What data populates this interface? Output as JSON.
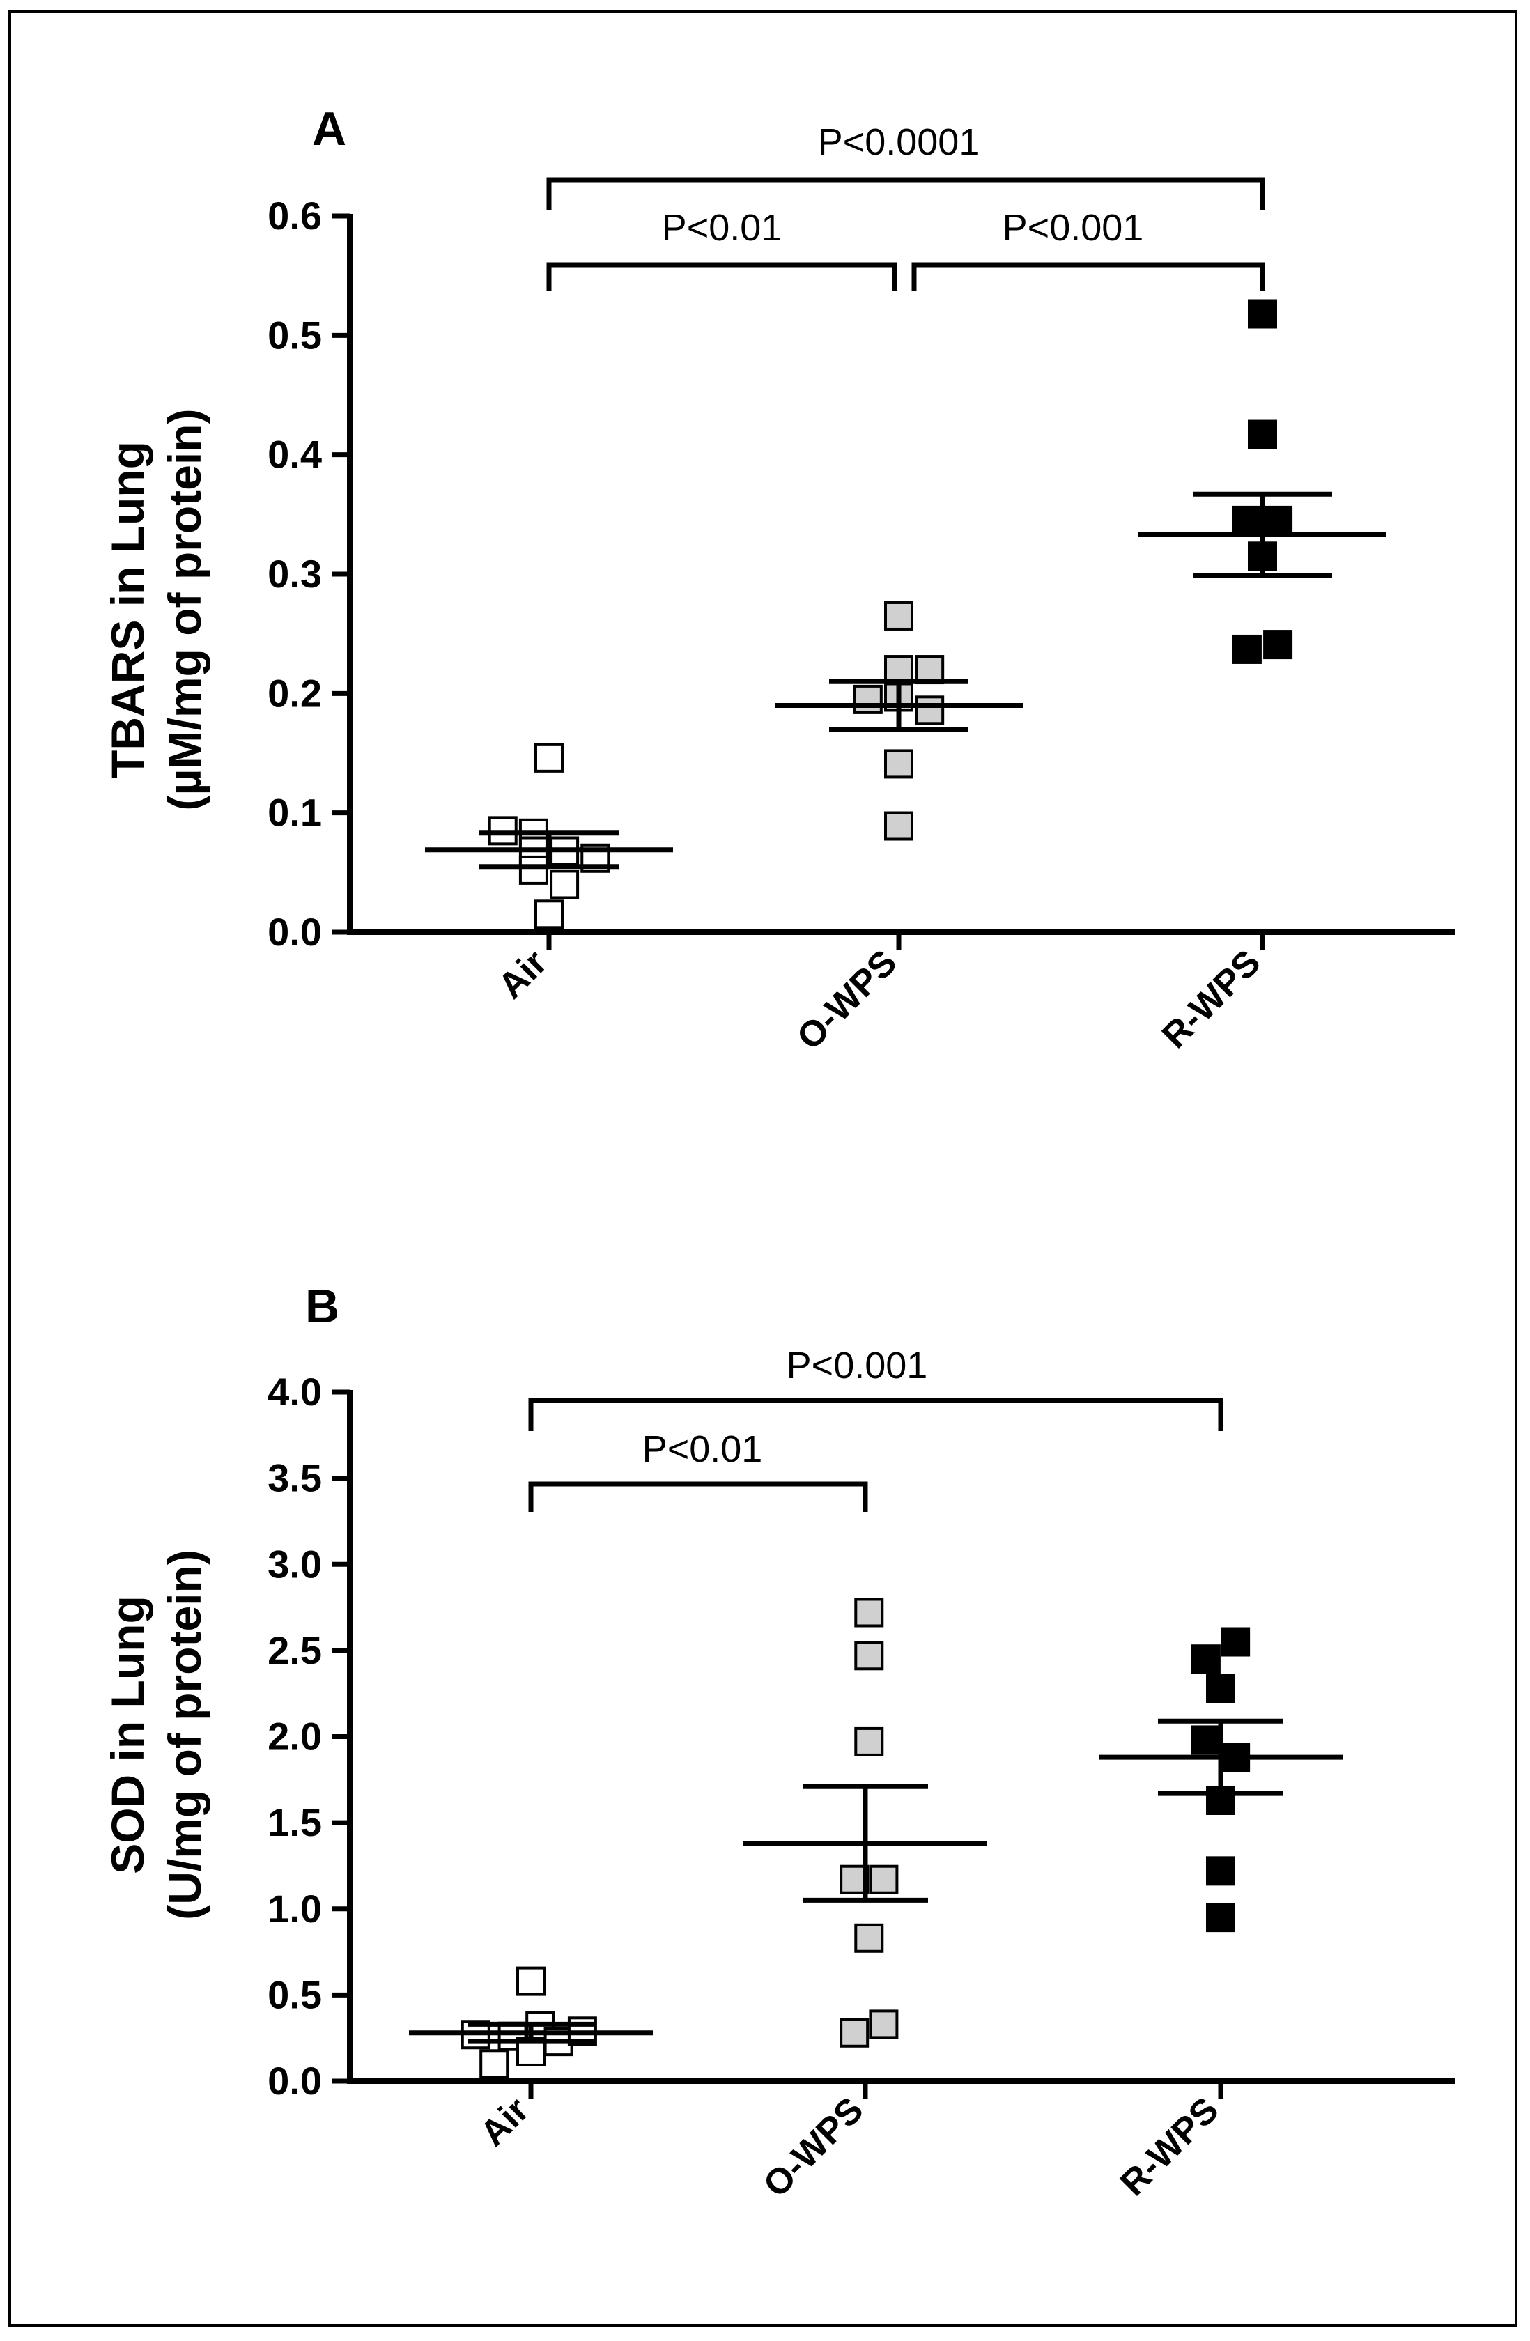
{
  "chart_data": [
    {
      "type": "scatter",
      "panel": "A",
      "ylabel_line1": "TBARS  in Lung",
      "ylabel_line2": "(µM/mg of protein)",
      "categories": [
        "Air",
        "O-WPS",
        "R-WPS"
      ],
      "ylim": [
        0,
        0.6
      ],
      "yticks": [
        "0.0",
        "0.1",
        "0.2",
        "0.3",
        "0.4",
        "0.5",
        "0.6"
      ],
      "series": [
        {
          "name": "Air",
          "fill": "#ffffff",
          "mean": 0.069,
          "sem": 0.014,
          "points": [
            [
              -0.24,
              0.085
            ],
            [
              0.0,
              0.146
            ],
            [
              -0.08,
              0.083
            ],
            [
              0.08,
              0.068
            ],
            [
              -0.08,
              0.068
            ],
            [
              0.24,
              0.062
            ],
            [
              -0.08,
              0.052
            ],
            [
              0.08,
              0.04
            ],
            [
              0.0,
              0.015
            ]
          ]
        },
        {
          "name": "O-WPS",
          "fill": "#d0d0d0",
          "mean": 0.19,
          "sem": 0.02,
          "points": [
            [
              0.0,
              0.265
            ],
            [
              0.0,
              0.22
            ],
            [
              0.16,
              0.22
            ],
            [
              -0.16,
              0.195
            ],
            [
              0.0,
              0.197
            ],
            [
              0.16,
              0.186
            ],
            [
              0.0,
              0.141
            ],
            [
              0.0,
              0.089
            ]
          ]
        },
        {
          "name": "R-WPS",
          "fill": "#000000",
          "mean": 0.333,
          "sem": 0.034,
          "points": [
            [
              0.0,
              0.518
            ],
            [
              0.0,
              0.417
            ],
            [
              -0.08,
              0.345
            ],
            [
              0.08,
              0.345
            ],
            [
              0.0,
              0.315
            ],
            [
              -0.08,
              0.237
            ],
            [
              0.08,
              0.241
            ]
          ]
        }
      ],
      "brackets": [
        {
          "from": "Air",
          "to": "R-WPS",
          "label": "P<0.0001"
        },
        {
          "from": "Air",
          "to": "O-WPS",
          "label": "P<0.01"
        },
        {
          "from": "O-WPS",
          "to": "R-WPS",
          "label": "P<0.001"
        }
      ]
    },
    {
      "type": "scatter",
      "panel": "B",
      "ylabel_line1": "SOD in Lung",
      "ylabel_line2": "(U/mg of protein)",
      "categories": [
        "Air",
        "O-WPS",
        "R-WPS"
      ],
      "ylim": [
        0,
        4.0
      ],
      "yticks": [
        "0.0",
        "0.5",
        "1.0",
        "1.5",
        "2.0",
        "2.5",
        "3.0",
        "3.5",
        "4.0"
      ],
      "series": [
        {
          "name": "Air",
          "fill": "#ffffff",
          "mean": 0.28,
          "sem": 0.05,
          "points": [
            [
              -0.3,
              0.27
            ],
            [
              -0.2,
              0.1
            ],
            [
              -0.1,
              0.26
            ],
            [
              0.0,
              0.58
            ],
            [
              0.05,
              0.32
            ],
            [
              0.0,
              0.17
            ],
            [
              0.15,
              0.23
            ],
            [
              0.28,
              0.29
            ]
          ]
        },
        {
          "name": "O-WPS",
          "fill": "#d0d0d0",
          "mean": 1.38,
          "sem": 0.33,
          "points": [
            [
              0.02,
              2.72
            ],
            [
              0.02,
              2.47
            ],
            [
              0.02,
              1.97
            ],
            [
              -0.06,
              1.17
            ],
            [
              0.1,
              1.17
            ],
            [
              0.02,
              0.83
            ],
            [
              -0.06,
              0.28
            ],
            [
              0.1,
              0.33
            ]
          ]
        },
        {
          "name": "R-WPS",
          "fill": "#000000",
          "mean": 1.88,
          "sem": 0.21,
          "points": [
            [
              0.08,
              2.55
            ],
            [
              -0.08,
              2.45
            ],
            [
              0.0,
              2.28
            ],
            [
              -0.08,
              1.98
            ],
            [
              0.08,
              1.88
            ],
            [
              0.0,
              1.63
            ],
            [
              0.0,
              1.22
            ],
            [
              0.0,
              0.95
            ]
          ]
        }
      ],
      "brackets": [
        {
          "from": "Air",
          "to": "R-WPS",
          "label": "P<0.001"
        },
        {
          "from": "Air",
          "to": "O-WPS",
          "label": "P<0.01"
        }
      ]
    }
  ]
}
